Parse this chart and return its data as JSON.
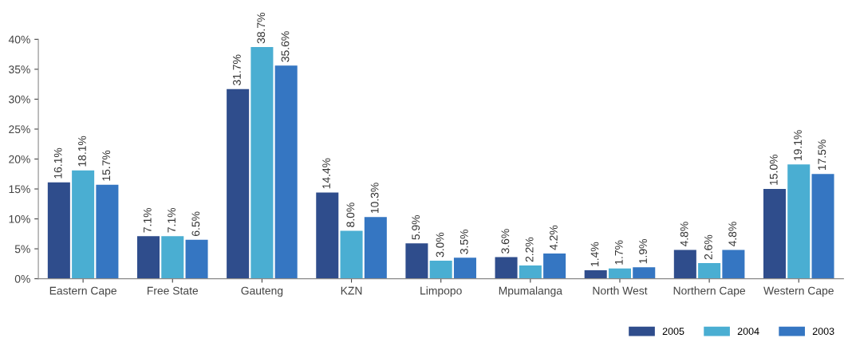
{
  "chart_data": {
    "type": "bar",
    "categories": [
      "Eastern Cape",
      "Free State",
      "Gauteng",
      "KZN",
      "Limpopo",
      "Mpumalanga",
      "North West",
      "Northern Cape",
      "Western Cape"
    ],
    "series": [
      {
        "name": "2005",
        "color": "#2f4d8c",
        "values": [
          16.1,
          7.1,
          31.7,
          14.4,
          5.9,
          3.6,
          1.4,
          4.8,
          15.0
        ],
        "value_labels": [
          "16.1%",
          "7.1%",
          "31.7%",
          "14.4%",
          "5.9%",
          "3.6%",
          "1.4%",
          "4.8%",
          "15.0%"
        ]
      },
      {
        "name": "2004",
        "color": "#4aaed2",
        "values": [
          18.1,
          7.1,
          38.7,
          8.0,
          3.0,
          2.2,
          1.7,
          2.6,
          19.1
        ],
        "value_labels": [
          "18.1%",
          "7.1%",
          "38.7%",
          "8.0%",
          "3.0%",
          "2.2%",
          "1.7%",
          "2.6%",
          "19.1%"
        ]
      },
      {
        "name": "2003",
        "color": "#3576c2",
        "values": [
          15.7,
          6.5,
          35.6,
          10.3,
          3.5,
          4.2,
          1.9,
          4.8,
          17.5
        ],
        "value_labels": [
          "15.7%",
          "6.5%",
          "35.6%",
          "10.3%",
          "3.5%",
          "4.2%",
          "1.9%",
          "4.8%",
          "17.5%"
        ]
      }
    ],
    "ylim": [
      0,
      40
    ],
    "yticks": [
      {
        "value": 0,
        "label": "0%"
      },
      {
        "value": 5,
        "label": "5%"
      },
      {
        "value": 10,
        "label": "10%"
      },
      {
        "value": 15,
        "label": "15%"
      },
      {
        "value": 20,
        "label": "20%"
      },
      {
        "value": 25,
        "label": "25%"
      },
      {
        "value": 30,
        "label": "30%"
      },
      {
        "value": 35,
        "label": "35%"
      },
      {
        "value": 40,
        "label": "40%"
      }
    ],
    "grid": false,
    "legend": "bottom right"
  }
}
